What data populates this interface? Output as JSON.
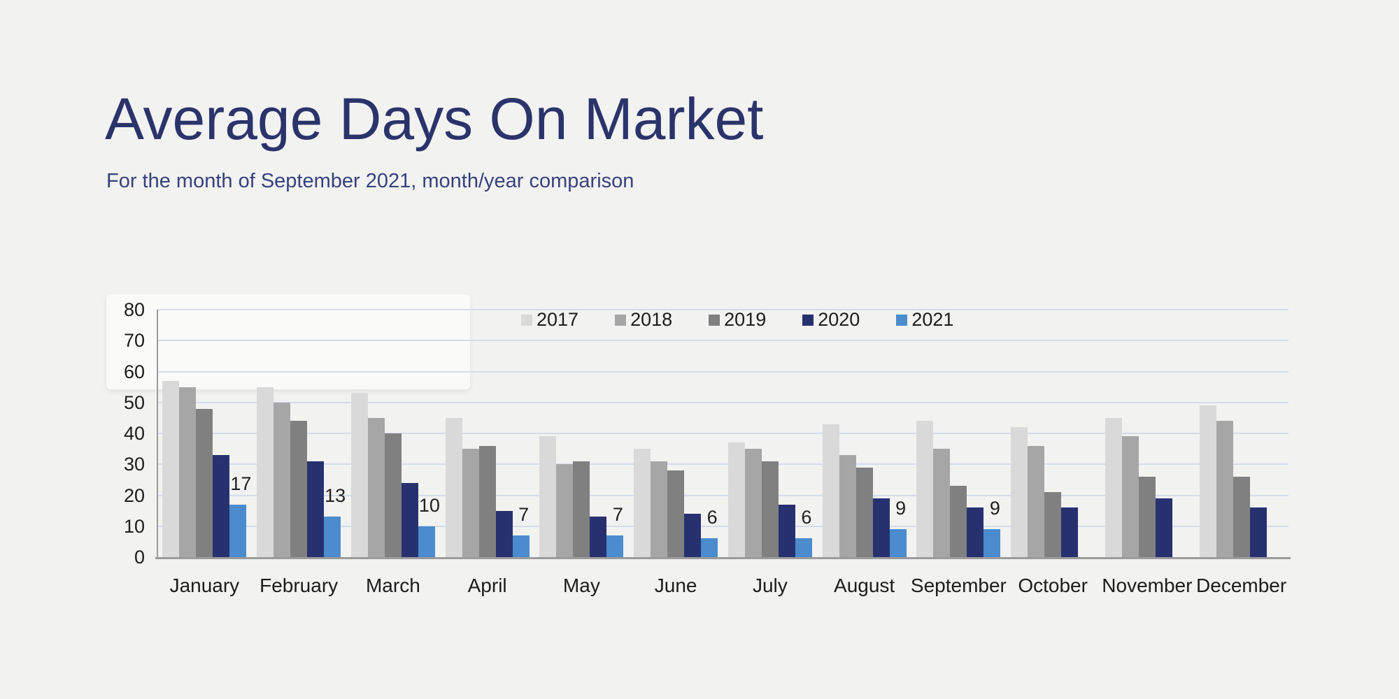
{
  "page": {
    "title": "Average Days On Market",
    "subtitle": "For the month of September 2021, month/year comparison"
  },
  "colors": {
    "background": "#f2f2f1",
    "title_text": "#2b336b",
    "subtitle_text": "#36427d",
    "gridline": "#d5dbe9",
    "axis_line": "#9b9b9b",
    "tick_text": "#1c1c1c",
    "month_label_text": "#1c1c1c",
    "bar_label_text": "#1f1f1f",
    "legend_text": "#1c1c1c"
  },
  "chart_data": {
    "type": "bar",
    "title": "Average Days On Market",
    "subtitle": "For the month of September 2021, month/year comparison",
    "categories": [
      "January",
      "February",
      "March",
      "April",
      "May",
      "June",
      "July",
      "August",
      "September",
      "October",
      "November",
      "December"
    ],
    "series": [
      {
        "name": "2017",
        "color": "#d9d9d9",
        "values": [
          57,
          55,
          53,
          45,
          39,
          35,
          37,
          43,
          44,
          42,
          45,
          49
        ]
      },
      {
        "name": "2018",
        "color": "#a6a6a6",
        "values": [
          55,
          50,
          45,
          35,
          30,
          31,
          35,
          33,
          35,
          36,
          39,
          44
        ]
      },
      {
        "name": "2019",
        "color": "#808080",
        "values": [
          48,
          44,
          40,
          36,
          31,
          28,
          31,
          29,
          23,
          21,
          26,
          26
        ]
      },
      {
        "name": "2020",
        "color": "#273170",
        "values": [
          33,
          31,
          24,
          15,
          13,
          14,
          17,
          19,
          16,
          16,
          19,
          16
        ]
      },
      {
        "name": "2021",
        "color": "#4a8ccd",
        "values": [
          17,
          13,
          10,
          7,
          7,
          6,
          6,
          9,
          9,
          null,
          null,
          null
        ]
      }
    ],
    "data_labels": {
      "series": "2021",
      "values": [
        17,
        13,
        10,
        7,
        7,
        6,
        6,
        9,
        9,
        null,
        null,
        null
      ]
    },
    "xlabel": "",
    "ylabel": "",
    "ylim": [
      0,
      80
    ],
    "yticks": [
      0,
      10,
      20,
      30,
      40,
      50,
      60,
      70,
      80
    ],
    "grid": true,
    "legend": {
      "position": "top-center",
      "entries": [
        "2017",
        "2018",
        "2019",
        "2020",
        "2021"
      ]
    }
  }
}
